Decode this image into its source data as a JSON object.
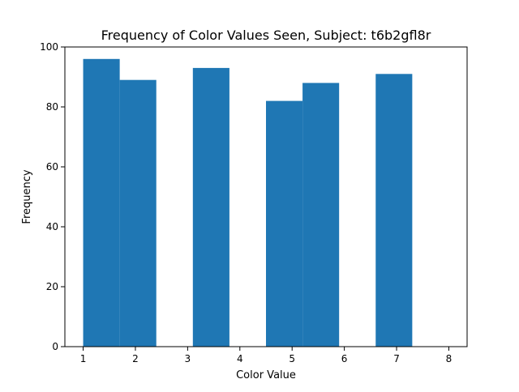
{
  "chart_data": {
    "type": "bar",
    "title": "Frequency of Color Values Seen, Subject: t6b2gfl8r",
    "xlabel": "Color Value",
    "ylabel": "Frequency",
    "xlim": [
      0.65,
      8.35
    ],
    "ylim": [
      0,
      100
    ],
    "x_ticks": [
      "1",
      "2",
      "3",
      "4",
      "5",
      "6",
      "7",
      "8"
    ],
    "y_ticks": [
      "0",
      "20",
      "40",
      "60",
      "80",
      "100"
    ],
    "bins": [
      {
        "x0": 1.0,
        "x1": 1.7,
        "value": 96
      },
      {
        "x0": 1.7,
        "x1": 2.4,
        "value": 89
      },
      {
        "x0": 2.4,
        "x1": 3.1,
        "value": 0
      },
      {
        "x0": 3.1,
        "x1": 3.8,
        "value": 93
      },
      {
        "x0": 3.8,
        "x1": 4.5,
        "value": 0
      },
      {
        "x0": 4.5,
        "x1": 5.2,
        "value": 82
      },
      {
        "x0": 5.2,
        "x1": 5.9,
        "value": 88
      },
      {
        "x0": 5.9,
        "x1": 6.6,
        "value": 0
      },
      {
        "x0": 6.6,
        "x1": 7.3,
        "value": 91
      },
      {
        "x0": 7.3,
        "x1": 8.0,
        "value": 0
      }
    ],
    "bar_color": "#1f77b4",
    "grid": false,
    "legend": "none"
  }
}
